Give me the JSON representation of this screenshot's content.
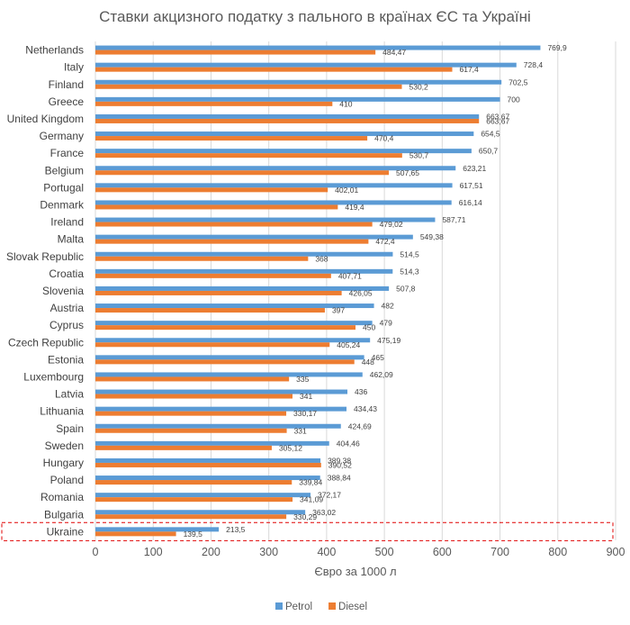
{
  "chart_data": {
    "type": "bar",
    "orientation": "horizontal",
    "title": "Ставки акцизного податку з пального в країнах ЄС та Україні",
    "xlabel": "Євро за 1000 л",
    "ylabel": "",
    "xlim": [
      0,
      900
    ],
    "xticks": [
      0,
      100,
      200,
      300,
      400,
      500,
      600,
      700,
      800,
      900
    ],
    "grid": true,
    "legend_position": "bottom",
    "categories": [
      "Netherlands",
      "Italy",
      "Finland",
      "Greece",
      "United Kingdom",
      "Germany",
      "France",
      "Belgium",
      "Portugal",
      "Denmark",
      "Ireland",
      "Malta",
      "Slovak Republic",
      "Croatia",
      "Slovenia",
      "Austria",
      "Cyprus",
      "Czech Republic",
      "Estonia",
      "Luxembourg",
      "Latvia",
      "Lithuania",
      "Spain",
      "Sweden",
      "Hungary",
      "Poland",
      "Romania",
      "Bulgaria",
      "Ukraine"
    ],
    "series": [
      {
        "name": "Petrol",
        "color": "#5B9BD5",
        "values": [
          769.9,
          728.4,
          702.5,
          700,
          663.67,
          654.5,
          650.7,
          623.21,
          617.51,
          616.14,
          587.71,
          549.38,
          514.5,
          514.3,
          507.8,
          482,
          479,
          475.19,
          465,
          462.09,
          436,
          434.43,
          424.69,
          404.46,
          389.38,
          388.84,
          372.17,
          363.02,
          213.5
        ],
        "labels": [
          "769,9",
          "728,4",
          "702,5",
          "700",
          "663,67",
          "654,5",
          "650,7",
          "623,21",
          "617,51",
          "616,14",
          "587,71",
          "549,38",
          "514,5",
          "514,3",
          "507,8",
          "482",
          "479",
          "475,19",
          "465",
          "462,09",
          "436",
          "434,43",
          "424,69",
          "404,46",
          "389,38",
          "388,84",
          "372,17",
          "363,02",
          "213,5"
        ]
      },
      {
        "name": "Diesel",
        "color": "#ED7D31",
        "values": [
          484.47,
          617.4,
          530.2,
          410,
          663.67,
          470.4,
          530.7,
          507.65,
          402.01,
          419.4,
          479.02,
          472.4,
          368,
          407.71,
          426.05,
          397,
          450,
          405.24,
          448,
          335,
          341,
          330.17,
          331,
          305.12,
          390.52,
          339.84,
          341.09,
          330.29,
          139.5
        ],
        "labels": [
          "484,47",
          "617,4",
          "530,2",
          "410",
          "663,67",
          "470,4",
          "530,7",
          "507,65",
          "402,01",
          "419,4",
          "479,02",
          "472,4",
          "368",
          "407,71",
          "426,05",
          "397",
          "450",
          "405,24",
          "448",
          "335",
          "341",
          "330,17",
          "331",
          "305,12",
          "390,52",
          "339,84",
          "341,09",
          "330,29",
          "139,5"
        ]
      }
    ],
    "highlight": {
      "category": "Ukraine",
      "style": "dashed-box",
      "color": "#E00000"
    }
  }
}
